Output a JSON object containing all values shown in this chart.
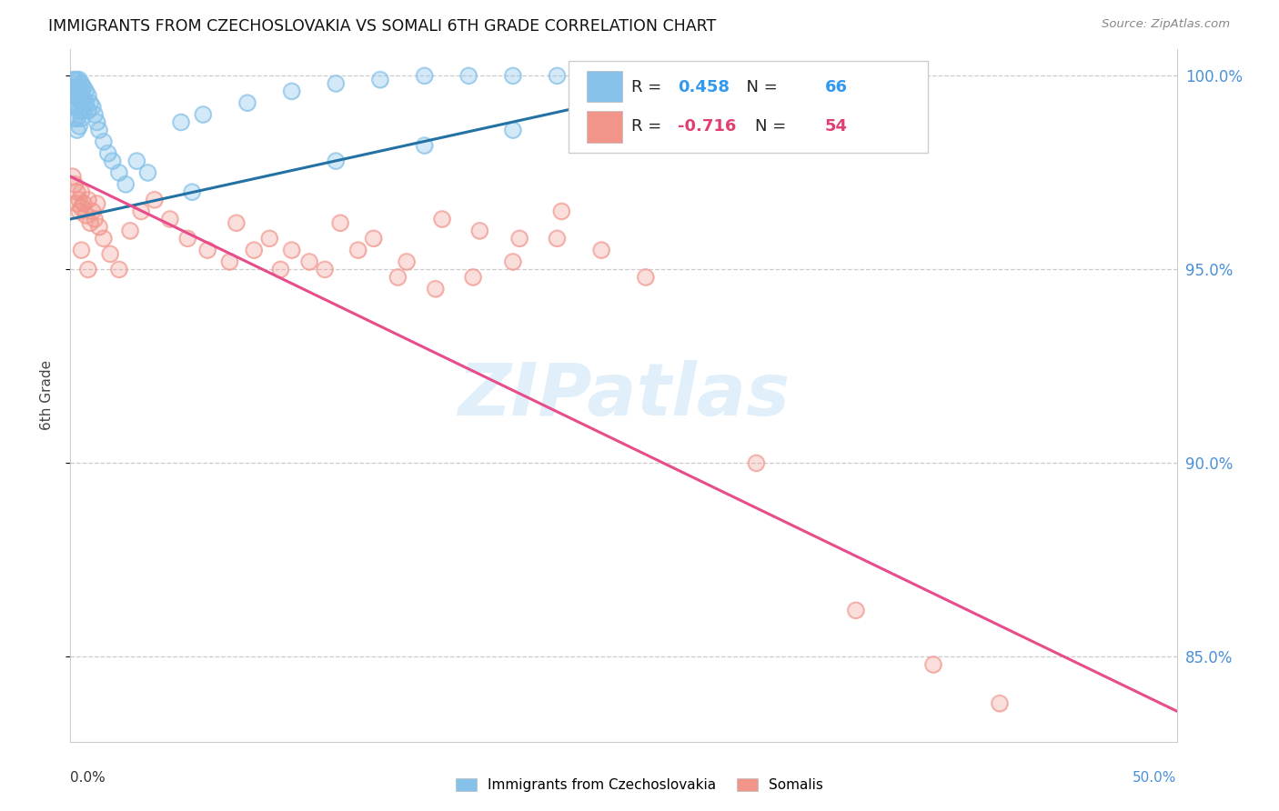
{
  "title": "IMMIGRANTS FROM CZECHOSLOVAKIA VS SOMALI 6TH GRADE CORRELATION CHART",
  "source": "Source: ZipAtlas.com",
  "ylabel": "6th Grade",
  "xlim": [
    0.0,
    0.5
  ],
  "ylim": [
    0.828,
    1.007
  ],
  "y_ticks": [
    0.85,
    0.9,
    0.95,
    1.0
  ],
  "y_tick_labels_right": [
    "85.0%",
    "90.0%",
    "95.0%",
    "100.0%"
  ],
  "legend_label1": "Immigrants from Czechoslovakia",
  "legend_label2": "Somalis",
  "R1": "0.458",
  "N1": "66",
  "R2": "-0.716",
  "N2": "54",
  "blue_color": "#85c1e9",
  "pink_color": "#f1948a",
  "blue_line_color": "#2471a3",
  "pink_line_color": "#e74c8b",
  "blue_line_x": [
    0.0,
    0.295
  ],
  "blue_line_y": [
    0.963,
    1.0
  ],
  "pink_line_x": [
    0.0,
    0.5
  ],
  "pink_line_y": [
    0.974,
    0.836
  ],
  "blue_x": [
    0.001,
    0.001,
    0.001,
    0.001,
    0.002,
    0.002,
    0.002,
    0.002,
    0.002,
    0.003,
    0.003,
    0.003,
    0.003,
    0.003,
    0.003,
    0.004,
    0.004,
    0.004,
    0.004,
    0.004,
    0.005,
    0.005,
    0.005,
    0.005,
    0.006,
    0.006,
    0.006,
    0.007,
    0.007,
    0.008,
    0.008,
    0.009,
    0.01,
    0.011,
    0.012,
    0.013,
    0.015,
    0.017,
    0.019,
    0.022,
    0.025,
    0.03,
    0.035,
    0.05,
    0.06,
    0.08,
    0.1,
    0.12,
    0.14,
    0.16,
    0.18,
    0.2,
    0.22,
    0.24,
    0.26,
    0.285,
    0.295,
    0.055,
    0.12,
    0.16,
    0.2,
    0.23,
    0.26,
    0.28,
    0.29,
    0.295
  ],
  "blue_y": [
    0.999,
    0.997,
    0.995,
    0.993,
    0.999,
    0.997,
    0.995,
    0.992,
    0.989,
    0.999,
    0.997,
    0.995,
    0.992,
    0.989,
    0.986,
    0.999,
    0.997,
    0.994,
    0.991,
    0.987,
    0.998,
    0.996,
    0.993,
    0.989,
    0.997,
    0.994,
    0.991,
    0.996,
    0.993,
    0.995,
    0.991,
    0.993,
    0.992,
    0.99,
    0.988,
    0.986,
    0.983,
    0.98,
    0.978,
    0.975,
    0.972,
    0.978,
    0.975,
    0.988,
    0.99,
    0.993,
    0.996,
    0.998,
    0.999,
    1.0,
    1.0,
    1.0,
    1.0,
    1.0,
    1.0,
    1.0,
    1.0,
    0.97,
    0.978,
    0.982,
    0.986,
    0.99,
    0.994,
    0.997,
    0.999,
    1.0
  ],
  "pink_x": [
    0.001,
    0.002,
    0.003,
    0.003,
    0.004,
    0.004,
    0.005,
    0.005,
    0.006,
    0.007,
    0.008,
    0.009,
    0.01,
    0.011,
    0.012,
    0.013,
    0.015,
    0.018,
    0.022,
    0.027,
    0.032,
    0.038,
    0.045,
    0.053,
    0.062,
    0.072,
    0.083,
    0.095,
    0.108,
    0.122,
    0.137,
    0.152,
    0.168,
    0.185,
    0.203,
    0.222,
    0.075,
    0.09,
    0.1,
    0.115,
    0.13,
    0.148,
    0.165,
    0.182,
    0.2,
    0.22,
    0.24,
    0.26,
    0.005,
    0.008,
    0.31,
    0.355,
    0.39,
    0.42
  ],
  "pink_y": [
    0.974,
    0.972,
    0.97,
    0.967,
    0.968,
    0.965,
    0.97,
    0.966,
    0.967,
    0.964,
    0.968,
    0.962,
    0.965,
    0.963,
    0.967,
    0.961,
    0.958,
    0.954,
    0.95,
    0.96,
    0.965,
    0.968,
    0.963,
    0.958,
    0.955,
    0.952,
    0.955,
    0.95,
    0.952,
    0.962,
    0.958,
    0.952,
    0.963,
    0.96,
    0.958,
    0.965,
    0.962,
    0.958,
    0.955,
    0.95,
    0.955,
    0.948,
    0.945,
    0.948,
    0.952,
    0.958,
    0.955,
    0.948,
    0.955,
    0.95,
    0.9,
    0.862,
    0.848,
    0.838
  ]
}
